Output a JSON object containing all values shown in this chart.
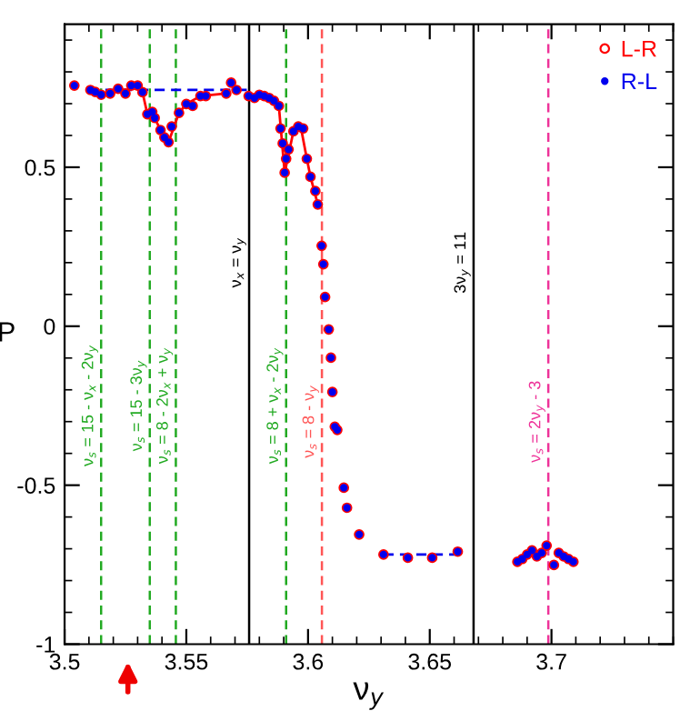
{
  "chart_data": {
    "type": "scatter",
    "xlabel": "ν$_{y}$",
    "ylabel": "P",
    "xlim": [
      3.5,
      3.75
    ],
    "ylim": [
      -1,
      0.95
    ],
    "xticks": [
      3.5,
      3.55,
      3.6,
      3.65,
      3.7
    ],
    "yticks": [
      -1,
      -0.5,
      0,
      0.5
    ],
    "grid": false,
    "legend": "top right",
    "series": [
      {
        "name": "L-R",
        "color": "#ff0000",
        "marker": "circle",
        "x": [
          3.504,
          3.5106,
          3.5126,
          3.515,
          3.5187,
          3.522,
          3.525,
          3.5274,
          3.53,
          3.532,
          3.534,
          3.536,
          3.537,
          3.5394,
          3.541,
          3.5427,
          3.544,
          3.547,
          3.55,
          3.5526,
          3.5558,
          3.558,
          3.5664,
          3.5684,
          3.5706,
          3.5756,
          3.578,
          3.58,
          3.582,
          3.584,
          3.586,
          3.588,
          3.5887,
          3.5896,
          3.5904,
          3.591,
          3.592,
          3.594,
          3.596,
          3.598,
          3.5995,
          3.601,
          3.603,
          3.604,
          3.6056,
          3.6063,
          3.607,
          3.6085,
          3.6094,
          3.61,
          3.611,
          3.612,
          3.6147,
          3.616,
          3.621,
          3.631,
          3.641,
          3.651,
          3.6615,
          3.686,
          3.688,
          3.69,
          3.692,
          3.694,
          3.696,
          3.698,
          3.701,
          3.703,
          3.705,
          3.707,
          3.709
        ],
        "values": [
          0.757,
          0.743,
          0.737,
          0.728,
          0.732,
          0.747,
          0.732,
          0.757,
          0.757,
          0.736,
          0.667,
          0.674,
          0.655,
          0.617,
          0.594,
          0.579,
          0.628,
          0.671,
          0.699,
          0.693,
          0.724,
          0.724,
          0.732,
          0.766,
          0.743,
          0.724,
          0.718,
          0.728,
          0.724,
          0.718,
          0.709,
          0.693,
          0.622,
          0.575,
          0.483,
          0.527,
          0.556,
          0.613,
          0.628,
          0.622,
          0.527,
          0.47,
          0.425,
          0.383,
          0.253,
          0.195,
          0.092,
          -0.01,
          -0.099,
          -0.207,
          -0.316,
          -0.326,
          -0.508,
          -0.571,
          -0.655,
          -0.718,
          -0.728,
          -0.728,
          -0.709,
          -0.741,
          -0.732,
          -0.718,
          -0.705,
          -0.724,
          -0.713,
          -0.69,
          -0.751,
          -0.713,
          -0.724,
          -0.732,
          -0.741
        ]
      },
      {
        "name": "R-L",
        "color": "#0000ee",
        "marker": "dot",
        "x": [
          3.504,
          3.5106,
          3.5126,
          3.515,
          3.5187,
          3.522,
          3.525,
          3.5274,
          3.53,
          3.532,
          3.534,
          3.536,
          3.537,
          3.5394,
          3.541,
          3.5427,
          3.544,
          3.547,
          3.55,
          3.5526,
          3.5558,
          3.558,
          3.5664,
          3.5684,
          3.5706,
          3.5756,
          3.578,
          3.58,
          3.582,
          3.584,
          3.586,
          3.588,
          3.5887,
          3.5896,
          3.5904,
          3.591,
          3.592,
          3.594,
          3.596,
          3.598,
          3.5995,
          3.601,
          3.603,
          3.604,
          3.6056,
          3.6063,
          3.607,
          3.6085,
          3.6094,
          3.61,
          3.611,
          3.612,
          3.6147,
          3.616,
          3.621,
          3.631,
          3.641,
          3.651,
          3.6615,
          3.686,
          3.688,
          3.69,
          3.692,
          3.694,
          3.696,
          3.698,
          3.701,
          3.703,
          3.705,
          3.707,
          3.709
        ],
        "values": [
          0.757,
          0.743,
          0.737,
          0.728,
          0.732,
          0.747,
          0.732,
          0.757,
          0.757,
          0.736,
          0.667,
          0.674,
          0.655,
          0.617,
          0.594,
          0.579,
          0.628,
          0.671,
          0.699,
          0.693,
          0.724,
          0.724,
          0.732,
          0.766,
          0.743,
          0.724,
          0.718,
          0.728,
          0.724,
          0.718,
          0.709,
          0.693,
          0.622,
          0.575,
          0.483,
          0.527,
          0.556,
          0.613,
          0.628,
          0.622,
          0.527,
          0.47,
          0.425,
          0.383,
          0.253,
          0.195,
          0.092,
          -0.01,
          -0.099,
          -0.207,
          -0.316,
          -0.326,
          -0.508,
          -0.571,
          -0.655,
          -0.718,
          -0.728,
          -0.728,
          -0.709,
          -0.741,
          -0.732,
          -0.718,
          -0.705,
          -0.724,
          -0.713,
          -0.69,
          -0.751,
          -0.713,
          -0.724,
          -0.732,
          -0.741
        ]
      },
      {
        "type": "line",
        "color": "#ff0000",
        "line_style": "solid",
        "x": [
          3.532,
          3.534,
          3.537,
          3.5394,
          3.5427,
          3.547,
          3.55,
          3.5558,
          3.5664
        ],
        "values": [
          0.736,
          0.667,
          0.655,
          0.617,
          0.579,
          0.671,
          0.699,
          0.724,
          0.732
        ]
      },
      {
        "type": "line",
        "color": "#ff0000",
        "line_style": "solid",
        "x": [
          3.584,
          3.588,
          3.5904,
          3.594,
          3.597,
          3.5995,
          3.601,
          3.604
        ],
        "values": [
          0.718,
          0.693,
          0.483,
          0.613,
          0.628,
          0.527,
          0.47,
          0.383
        ]
      },
      {
        "type": "line",
        "color": "#0000ee",
        "line_style": "dashed",
        "x": [
          3.51,
          3.575
        ],
        "values": [
          0.743,
          0.743
        ]
      },
      {
        "type": "line",
        "color": "#0000ee",
        "line_style": "dashed",
        "x": [
          3.631,
          3.6615
        ],
        "values": [
          -0.718,
          -0.718
        ]
      }
    ],
    "ref_lines": [
      {
        "axis": "x",
        "value": 3.515,
        "color": "#22aa22",
        "line_style": "dashed"
      },
      {
        "axis": "x",
        "value": 3.535,
        "color": "#22aa22",
        "line_style": "dashed"
      },
      {
        "axis": "x",
        "value": 3.5457,
        "color": "#22aa22",
        "line_style": "dashed"
      },
      {
        "axis": "x",
        "value": 3.5758,
        "color": "#000000",
        "line_style": "solid"
      },
      {
        "axis": "x",
        "value": 3.591,
        "color": "#22aa22",
        "line_style": "dashed"
      },
      {
        "axis": "x",
        "value": 3.6057,
        "color": "#ff5555",
        "line_style": "dashed"
      },
      {
        "axis": "x",
        "value": 3.668,
        "color": "#000000",
        "line_style": "solid"
      },
      {
        "axis": "x",
        "value": 3.6987,
        "color": "#ee3399",
        "line_style": "dashed"
      }
    ],
    "annotations": [
      {
        "text": "ν$_{s}$ = 15 - ν$_{x}$ - 2ν$_{y}$",
        "x": 3.515,
        "y": -0.25
      },
      {
        "text": "ν$_{s}$ = 15 - 3ν$_{y}$",
        "x": 3.535,
        "y": -0.25
      },
      {
        "text": "ν$_{s}$ = 8 - 2ν$_{x}$ + ν$_{y}$",
        "x": 3.5457,
        "y": -0.25
      },
      {
        "text": "ν$_{x}$ = ν$_{y}$",
        "x": 3.5758,
        "y": 0.2
      },
      {
        "text": "ν$_{s}$ = 8 + ν$_{x}$ - 2ν$_{y}$",
        "x": 3.591,
        "y": -0.25
      },
      {
        "text": "ν$_{s}$ = 8 - ν$_{y}$",
        "x": 3.6057,
        "y": -0.3
      },
      {
        "text": "3ν$_{y}$ = 11",
        "x": 3.668,
        "y": 0.2
      },
      {
        "text": "ν$_{s}$ = 2ν$_{y}$ - 3",
        "x": 3.6987,
        "y": -0.3
      }
    ]
  }
}
